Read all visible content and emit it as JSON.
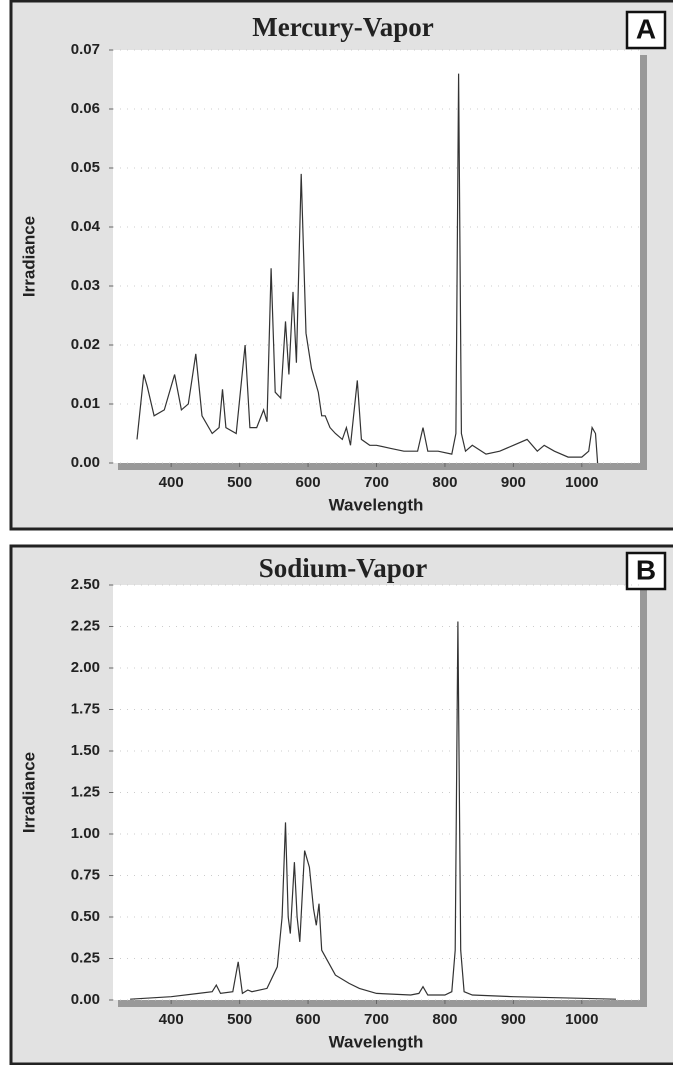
{
  "chart_data": [
    {
      "type": "line",
      "title": "Mercury-Vapor",
      "annotation": "A",
      "xlabel": "Wavelength",
      "ylabel": "Irradiance",
      "color": "#333333",
      "x": [
        350,
        360,
        365,
        375,
        390,
        405,
        415,
        425,
        436,
        445,
        460,
        470,
        475,
        480,
        495,
        508,
        515,
        525,
        535,
        540,
        546,
        552,
        560,
        567,
        572,
        578,
        583,
        590,
        597,
        605,
        615,
        620,
        625,
        632,
        640,
        650,
        656,
        662,
        672,
        678,
        690,
        700,
        720,
        740,
        760,
        768,
        775,
        790,
        810,
        816,
        820,
        824,
        830,
        840,
        860,
        880,
        900,
        920,
        935,
        945,
        960,
        980,
        1000,
        1010,
        1015,
        1020,
        1023
      ],
      "values": [
        0.004,
        0.015,
        0.013,
        0.008,
        0.009,
        0.015,
        0.009,
        0.01,
        0.0185,
        0.008,
        0.005,
        0.006,
        0.0125,
        0.006,
        0.005,
        0.02,
        0.006,
        0.006,
        0.009,
        0.007,
        0.033,
        0.012,
        0.011,
        0.024,
        0.015,
        0.029,
        0.017,
        0.049,
        0.022,
        0.016,
        0.012,
        0.008,
        0.008,
        0.006,
        0.005,
        0.004,
        0.006,
        0.003,
        0.014,
        0.004,
        0.003,
        0.003,
        0.0025,
        0.002,
        0.002,
        0.006,
        0.002,
        0.002,
        0.0015,
        0.005,
        0.066,
        0.005,
        0.002,
        0.003,
        0.0015,
        0.002,
        0.003,
        0.004,
        0.002,
        0.003,
        0.002,
        0.001,
        0.001,
        0.002,
        0.006,
        0.005,
        0.0
      ],
      "xlim": [
        315,
        1085
      ],
      "ylim": [
        0,
        0.07
      ],
      "xticks": [
        400,
        500,
        600,
        700,
        800,
        900,
        1000
      ],
      "yticks": [
        {
          "value": 0,
          "label": "0.00"
        },
        {
          "value": 0.01,
          "label": "0.01"
        },
        {
          "value": 0.02,
          "label": "0.02"
        },
        {
          "value": 0.03,
          "label": "0.03"
        },
        {
          "value": 0.04,
          "label": "0.04"
        },
        {
          "value": 0.05,
          "label": "0.05"
        },
        {
          "value": 0.06,
          "label": "0.06"
        },
        {
          "value": 0.07,
          "label": "0.07"
        }
      ]
    },
    {
      "type": "line",
      "title": "Sodium-Vapor",
      "annotation": "B",
      "xlabel": "Wavelength",
      "ylabel": "Irradiance",
      "color": "#333333",
      "x": [
        340,
        400,
        440,
        460,
        466,
        472,
        490,
        498,
        504,
        512,
        518,
        540,
        555,
        562,
        567,
        571,
        574,
        580,
        584,
        588,
        595,
        602,
        608,
        612,
        616,
        620,
        640,
        660,
        675,
        700,
        750,
        762,
        768,
        775,
        800,
        810,
        815,
        819,
        823,
        828,
        840,
        900,
        1000,
        1050
      ],
      "values": [
        0.005,
        0.02,
        0.04,
        0.05,
        0.09,
        0.04,
        0.05,
        0.23,
        0.04,
        0.06,
        0.05,
        0.07,
        0.2,
        0.5,
        1.07,
        0.5,
        0.4,
        0.83,
        0.5,
        0.35,
        0.9,
        0.8,
        0.55,
        0.45,
        0.58,
        0.3,
        0.15,
        0.1,
        0.07,
        0.04,
        0.03,
        0.04,
        0.08,
        0.03,
        0.03,
        0.05,
        0.3,
        2.28,
        0.3,
        0.05,
        0.03,
        0.02,
        0.01,
        0.005
      ],
      "xlim": [
        315,
        1085
      ],
      "ylim": [
        0,
        2.5
      ],
      "xticks": [
        400,
        500,
        600,
        700,
        800,
        900,
        1000
      ],
      "yticks": [
        {
          "value": 0,
          "label": "0.00"
        },
        {
          "value": 0.25,
          "label": "0.25"
        },
        {
          "value": 0.5,
          "label": "0.50"
        },
        {
          "value": 0.75,
          "label": "0.75"
        },
        {
          "value": 1.0,
          "label": "1.00"
        },
        {
          "value": 1.25,
          "label": "1.25"
        },
        {
          "value": 1.5,
          "label": "1.50"
        },
        {
          "value": 1.75,
          "label": "1.75"
        },
        {
          "value": 2.0,
          "label": "2.00"
        },
        {
          "value": 2.25,
          "label": "2.25"
        },
        {
          "value": 2.5,
          "label": "2.50"
        }
      ]
    }
  ]
}
